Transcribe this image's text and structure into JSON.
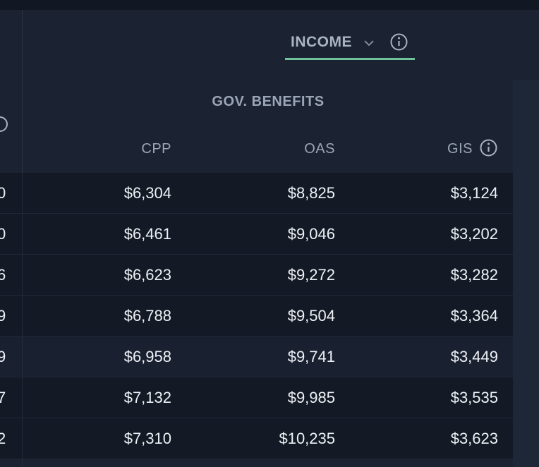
{
  "tab": {
    "label": "INCOME"
  },
  "table": {
    "group_header": "GOV. BENEFITS",
    "columns": [
      "CPP",
      "OAS",
      "GIS"
    ],
    "left_fragments": [
      "0",
      "0",
      "6",
      "9",
      "9",
      "7",
      "2"
    ],
    "rows": [
      [
        "$6,304",
        "$8,825",
        "$3,124"
      ],
      [
        "$6,461",
        "$9,046",
        "$3,202"
      ],
      [
        "$6,623",
        "$9,272",
        "$3,282"
      ],
      [
        "$6,788",
        "$9,504",
        "$3,364"
      ],
      [
        "$6,958",
        "$9,741",
        "$3,449"
      ],
      [
        "$7,132",
        "$9,985",
        "$3,535"
      ],
      [
        "$7,310",
        "$10,235",
        "$3,623"
      ]
    ]
  }
}
